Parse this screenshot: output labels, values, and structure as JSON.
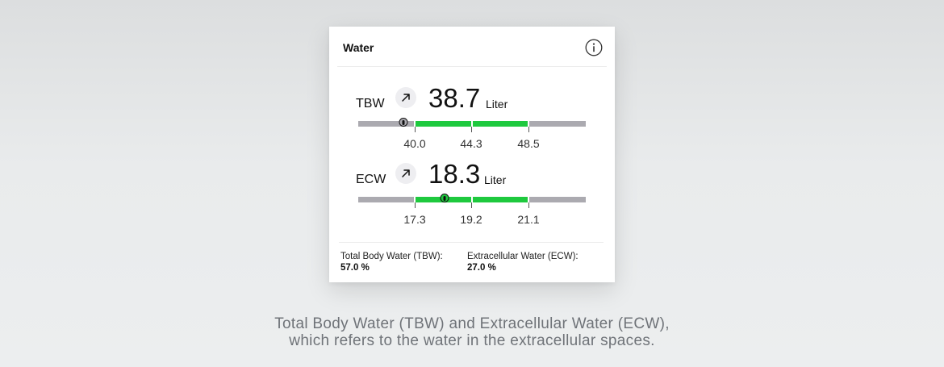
{
  "card": {
    "title": "Water",
    "info_icon": "info-circle-icon"
  },
  "metrics": [
    {
      "label": "TBW",
      "trend_icon": "arrow-up-right-icon",
      "value": "38.7",
      "unit": "Liter",
      "ticks": [
        "40.0",
        "44.3",
        "48.5"
      ],
      "normal_range_color": "#1ec93e",
      "out_of_range_color": "#abaab0"
    },
    {
      "label": "ECW",
      "trend_icon": "arrow-up-right-icon",
      "value": "18.3",
      "unit": "Liter",
      "ticks": [
        "17.3",
        "19.2",
        "21.1"
      ],
      "normal_range_color": "#1ec93e",
      "out_of_range_color": "#abaab0"
    }
  ],
  "footer": {
    "tbw_label": "Total Body Water (TBW):",
    "tbw_value": "57.0 %",
    "ecw_label": "Extracellular Water (ECW):",
    "ecw_value": "27.0 %"
  },
  "caption": {
    "line1": "Total Body Water (TBW) and Extracellular Water (ECW),",
    "line2": "which refers to the water in the extracellular spaces."
  }
}
